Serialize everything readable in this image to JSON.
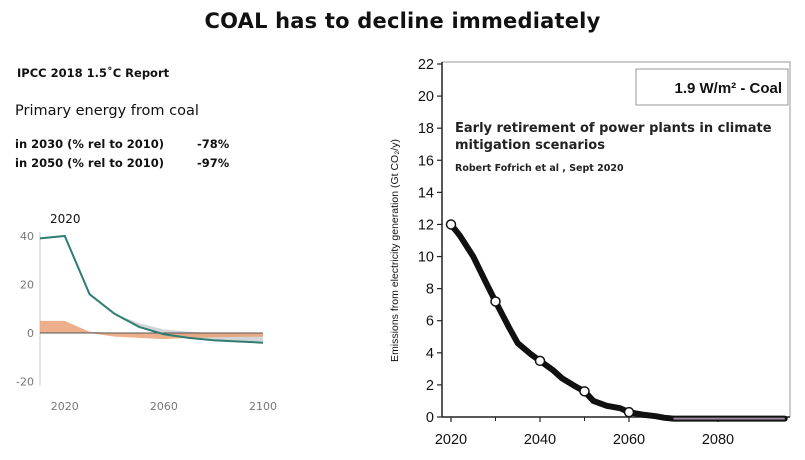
{
  "title": "COAL has to decline immediately",
  "left_panel": {
    "report": "IPCC 2018 1.5˚C Report",
    "heading": "Primary energy from coal",
    "stats": [
      {
        "label": "in 2030 (% rel to 2010)",
        "value": "-78%"
      },
      {
        "label": "in 2050 (% rel to 2010)",
        "value": "-97%"
      }
    ],
    "annotation": "2020"
  },
  "right_panel": {
    "scenario_box": "1.9 W/m² - Coal",
    "study_title": "Early retirement of power plants in climate mitigation scenarios",
    "study_author": "Robert Fofrich et al , Sept 2020"
  },
  "chart_data": [
    {
      "type": "area",
      "x": [
        2010,
        2020,
        2030,
        2040,
        2050,
        2060,
        2070,
        2080,
        2090,
        2100
      ],
      "series": [
        {
          "values": [
            39,
            40,
            16,
            8,
            2.5,
            -0.5,
            -2,
            -3,
            -3.5,
            -4
          ]
        },
        {
          "values": [
            39,
            40,
            16,
            8,
            4,
            1.5,
            0.5,
            0,
            -0.3,
            -0.5
          ]
        },
        {
          "values": [
            5,
            5,
            0.5,
            0,
            0,
            0,
            0,
            0,
            0,
            0
          ]
        },
        {
          "values": [
            0,
            0,
            0,
            -1.5,
            -2,
            -2.5,
            -2,
            -1.8,
            -1.6,
            -1.5
          ]
        }
      ],
      "xticks": [
        "2020",
        "2060",
        "2100"
      ],
      "yticks": [
        "40",
        "20",
        "0",
        "-20"
      ],
      "xlim": [
        2010,
        2100
      ],
      "ylim": [
        -20,
        40
      ],
      "colors": {
        "line": "#2f7d73",
        "range": "#cfd0d4",
        "orange": "#eaa177"
      }
    },
    {
      "type": "line",
      "ylabel": "Emissions from electricity generation (Gt CO₂/y)",
      "x": [
        2020,
        2022,
        2025,
        2028,
        2030,
        2033,
        2035,
        2038,
        2040,
        2043,
        2045,
        2048,
        2050,
        2052,
        2055,
        2058,
        2060,
        2063,
        2066,
        2068,
        2070,
        2075,
        2080,
        2090,
        2095
      ],
      "values": [
        12,
        11.3,
        10,
        8.3,
        7.2,
        5.6,
        4.6,
        3.9,
        3.5,
        2.9,
        2.4,
        1.9,
        1.6,
        1.0,
        0.7,
        0.55,
        0.3,
        0.15,
        0.05,
        -0.05,
        -0.1,
        -0.1,
        -0.1,
        -0.1,
        -0.1
      ],
      "markers": [
        [
          2020,
          12
        ],
        [
          2030,
          7.2
        ],
        [
          2040,
          3.5
        ],
        [
          2050,
          1.6
        ],
        [
          2060,
          0.3
        ]
      ],
      "xticks": [
        "2020",
        "2040",
        "2060",
        "2080"
      ],
      "yticks": [
        "0",
        "2",
        "4",
        "6",
        "8",
        "10",
        "12",
        "14",
        "16",
        "18",
        "20",
        "22"
      ],
      "xlim": [
        2018,
        2098
      ],
      "ylim": [
        0,
        22
      ],
      "colors": {
        "line": "#111111",
        "tail": "#9c8a9c"
      }
    }
  ]
}
